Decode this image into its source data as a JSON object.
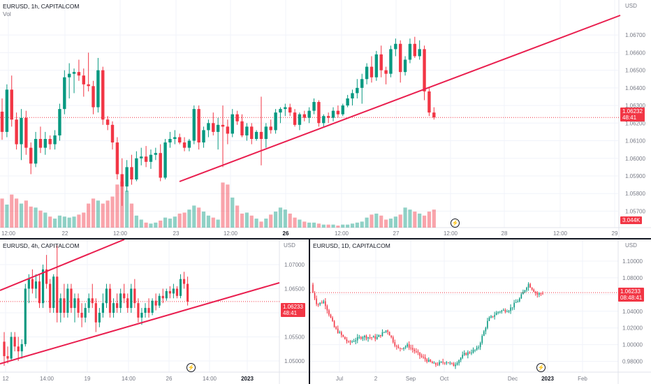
{
  "chart_data": [
    {
      "type": "candlestick",
      "title": "EURUSD, 1h, CAPITALCOM",
      "subtitle": "Vol",
      "currency": "USD",
      "y_ticks": [
        "1.06700",
        "1.06600",
        "1.06500",
        "1.06400",
        "1.06300",
        "1.06200",
        "1.06100",
        "1.06000",
        "1.05900",
        "1.05800",
        "1.05700"
      ],
      "ylim": [
        1.0567,
        1.0688
      ],
      "x_ticks": [
        "12:00",
        "22",
        "12:00",
        "23",
        "12:00",
        "26",
        "12:00",
        "27",
        "12:00",
        "28",
        "12:00",
        "29"
      ],
      "bold_ticks": [
        "26"
      ],
      "last_price": "1.06232",
      "countdown": "48:41",
      "volume_label": "3.044K",
      "candles": [
        [
          1.06265,
          1.0634,
          1.06105,
          1.0615
        ],
        [
          1.0615,
          1.0642,
          1.0612,
          1.0639
        ],
        [
          1.0639,
          1.0647,
          1.0618,
          1.0622
        ],
        [
          1.0622,
          1.0626,
          1.0605,
          1.0608
        ],
        [
          1.0608,
          1.0628,
          1.0599,
          1.0623
        ],
        [
          1.0623,
          1.0627,
          1.0602,
          1.0606
        ],
        [
          1.0606,
          1.0609,
          1.0591,
          1.0597
        ],
        [
          1.0597,
          1.0615,
          1.0595,
          1.0611
        ],
        [
          1.0611,
          1.0618,
          1.0603,
          1.0606
        ],
        [
          1.0606,
          1.0615,
          1.0602,
          1.0611
        ],
        [
          1.0611,
          1.0613,
          1.0605,
          1.0608
        ],
        [
          1.0608,
          1.0616,
          1.0605,
          1.0613
        ],
        [
          1.0613,
          1.0631,
          1.061,
          1.0628
        ],
        [
          1.0628,
          1.065,
          1.0625,
          1.0646
        ],
        [
          1.0646,
          1.0654,
          1.0634,
          1.0648
        ],
        [
          1.0648,
          1.0651,
          1.0637,
          1.0649
        ],
        [
          1.0649,
          1.0656,
          1.0644,
          1.0647
        ],
        [
          1.0647,
          1.0651,
          1.0635,
          1.0642
        ],
        [
          1.0642,
          1.066,
          1.0638,
          1.0641
        ],
        [
          1.0641,
          1.0644,
          1.0625,
          1.0629
        ],
        [
          1.0629,
          1.0657,
          1.0626,
          1.065
        ],
        [
          1.065,
          1.0652,
          1.0619,
          1.0622
        ],
        [
          1.0622,
          1.0624,
          1.0616,
          1.0619
        ],
        [
          1.0619,
          1.0621,
          1.0605,
          1.0609
        ],
        [
          1.0609,
          1.0612,
          1.0588,
          1.0591
        ],
        [
          1.0591,
          1.06,
          1.0573,
          1.0584
        ],
        [
          1.0584,
          1.0599,
          1.0581,
          1.0595
        ],
        [
          1.0595,
          1.0602,
          1.0585,
          1.0588
        ],
        [
          1.0588,
          1.0604,
          1.0587,
          1.06
        ],
        [
          1.06,
          1.0606,
          1.0596,
          1.0601
        ],
        [
          1.0601,
          1.0607,
          1.0595,
          1.0598
        ],
        [
          1.0598,
          1.0605,
          1.0594,
          1.0602
        ],
        [
          1.0602,
          1.0606,
          1.0599,
          1.0603
        ],
        [
          1.0603,
          1.0608,
          1.0587,
          1.0589
        ],
        [
          1.0589,
          1.0611,
          1.0588,
          1.0609
        ],
        [
          1.0609,
          1.0615,
          1.0606,
          1.0611
        ],
        [
          1.0611,
          1.0616,
          1.0608,
          1.0612
        ],
        [
          1.0612,
          1.0614,
          1.0608,
          1.0609
        ],
        [
          1.0609,
          1.0612,
          1.0604,
          1.0606
        ],
        [
          1.0606,
          1.0611,
          1.0604,
          1.061
        ],
        [
          1.061,
          1.063,
          1.0608,
          1.0628
        ],
        [
          1.0628,
          1.063,
          1.0605,
          1.0609
        ],
        [
          1.0609,
          1.0618,
          1.0606,
          1.0616
        ],
        [
          1.0616,
          1.0622,
          1.0612,
          1.062
        ],
        [
          1.062,
          1.0626,
          1.0613,
          1.0615
        ],
        [
          1.0615,
          1.0623,
          1.0605,
          1.0619
        ],
        [
          1.0619,
          1.063,
          1.0595,
          1.0618
        ],
        [
          1.0618,
          1.0622,
          1.0608,
          1.0614
        ],
        [
          1.0614,
          1.0628,
          1.0612,
          1.0625
        ],
        [
          1.0625,
          1.0627,
          1.0619,
          1.0621
        ],
        [
          1.0621,
          1.0625,
          1.0612,
          1.0613
        ],
        [
          1.0613,
          1.062,
          1.061,
          1.0618
        ],
        [
          1.0618,
          1.062,
          1.0608,
          1.0611
        ],
        [
          1.0611,
          1.0616,
          1.061,
          1.0615
        ],
        [
          1.0615,
          1.0635,
          1.0596,
          1.0611
        ],
        [
          1.0611,
          1.062,
          1.0606,
          1.0618
        ],
        [
          1.0618,
          1.0622,
          1.0614,
          1.0616
        ],
        [
          1.0616,
          1.0628,
          1.0614,
          1.0626
        ],
        [
          1.0626,
          1.0629,
          1.062,
          1.0628
        ],
        [
          1.0628,
          1.0631,
          1.0624,
          1.0629
        ],
        [
          1.0629,
          1.0631,
          1.0624,
          1.0626
        ],
        [
          1.0626,
          1.0628,
          1.0618,
          1.0619
        ],
        [
          1.0619,
          1.0626,
          1.0616,
          1.0625
        ],
        [
          1.0625,
          1.0627,
          1.0621,
          1.0623
        ],
        [
          1.0623,
          1.0629,
          1.062,
          1.0627
        ],
        [
          1.0627,
          1.0634,
          1.0625,
          1.0632
        ],
        [
          1.0632,
          1.0633,
          1.0618,
          1.062
        ],
        [
          1.062,
          1.0625,
          1.0618,
          1.0624
        ],
        [
          1.0624,
          1.0626,
          1.062,
          1.0623
        ],
        [
          1.0623,
          1.0629,
          1.0621,
          1.0627
        ],
        [
          1.0627,
          1.063,
          1.0623,
          1.0625
        ],
        [
          1.0625,
          1.0631,
          1.0624,
          1.063
        ],
        [
          1.063,
          1.0636,
          1.0629,
          1.0634
        ],
        [
          1.0634,
          1.0639,
          1.063,
          1.0637
        ],
        [
          1.0637,
          1.0645,
          1.0634,
          1.064
        ],
        [
          1.064,
          1.0648,
          1.0631,
          1.0645
        ],
        [
          1.0645,
          1.0654,
          1.0642,
          1.0652
        ],
        [
          1.0652,
          1.0658,
          1.0643,
          1.0646
        ],
        [
          1.0646,
          1.0661,
          1.0644,
          1.0659
        ],
        [
          1.0659,
          1.0664,
          1.0646,
          1.065
        ],
        [
          1.065,
          1.0652,
          1.0642,
          1.0648
        ],
        [
          1.0648,
          1.0664,
          1.0646,
          1.0662
        ],
        [
          1.0662,
          1.0668,
          1.0658,
          1.0665
        ],
        [
          1.0665,
          1.0667,
          1.0643,
          1.0649
        ],
        [
          1.0649,
          1.0658,
          1.0647,
          1.0656
        ],
        [
          1.0656,
          1.0668,
          1.0654,
          1.0665
        ],
        [
          1.0665,
          1.0669,
          1.0657,
          1.0658
        ],
        [
          1.0658,
          1.0667,
          1.0656,
          1.0662
        ],
        [
          1.0662,
          1.0664,
          1.0633,
          1.0638
        ],
        [
          1.0638,
          1.064,
          1.0624,
          1.0626
        ],
        [
          1.0626,
          1.0629,
          1.0622,
          1.06232
        ]
      ],
      "volume": [
        29,
        23,
        33,
        29,
        24,
        27,
        21,
        20,
        17,
        15,
        11,
        9,
        12,
        11,
        10,
        11,
        13,
        15,
        24,
        29,
        27,
        24,
        27,
        31,
        43,
        46,
        37,
        24,
        12,
        8,
        5,
        4,
        5,
        7,
        10,
        9,
        11,
        14,
        15,
        18,
        22,
        20,
        16,
        12,
        10,
        8,
        45,
        43,
        30,
        22,
        14,
        15,
        12,
        9,
        6,
        9,
        13,
        16,
        20,
        18,
        14,
        10,
        8,
        6,
        5,
        5,
        4,
        3,
        3,
        3,
        2,
        3,
        3,
        4,
        5,
        6,
        10,
        13,
        14,
        12,
        8,
        9,
        11,
        13,
        20,
        18,
        16,
        14,
        12,
        16,
        18
      ],
      "volume_up": [
        false,
        true,
        false,
        false,
        true,
        false,
        false,
        true,
        false,
        true,
        false,
        true,
        true,
        true,
        true,
        true,
        false,
        false,
        false,
        false,
        true,
        false,
        false,
        false,
        false,
        false,
        true,
        false,
        true,
        true,
        false,
        true,
        true,
        false,
        true,
        true,
        true,
        false,
        false,
        true,
        true,
        false,
        true,
        true,
        false,
        true,
        false,
        false,
        true,
        false,
        false,
        true,
        false,
        true,
        false,
        true,
        false,
        true,
        true,
        true,
        false,
        false,
        true,
        false,
        true,
        true,
        false,
        true,
        false,
        true,
        false,
        true,
        true,
        true,
        true,
        true,
        true,
        false,
        true,
        false,
        false,
        true,
        true,
        false,
        true,
        true,
        false,
        true,
        false,
        false,
        false
      ],
      "trendline": [
        [
          1.0588
        ],
        [
          1.0672
        ]
      ]
    },
    {
      "type": "candlestick",
      "title": "EURUSD, 4h, CAPITALCOM",
      "currency": "USD",
      "y_ticks": [
        "1.07000",
        "1.06500",
        "1.06000",
        "1.05500",
        "1.05000"
      ],
      "ylim": [
        1.0487,
        1.0726
      ],
      "x_ticks": [
        "12",
        "14:00",
        "19",
        "14:00",
        "26",
        "14:00",
        "2023"
      ],
      "bold_ticks": [
        "2023"
      ],
      "last_price": "1.06233",
      "countdown": "48:41",
      "candles": [
        [
          1.054,
          1.056,
          1.049,
          1.051
        ],
        [
          1.051,
          1.053,
          1.0495,
          1.0505
        ],
        [
          1.0505,
          1.056,
          1.05,
          1.055
        ],
        [
          1.055,
          1.056,
          1.052,
          1.053
        ],
        [
          1.053,
          1.055,
          1.05,
          1.052
        ],
        [
          1.052,
          1.0545,
          1.0505,
          1.0535
        ],
        [
          1.0535,
          1.066,
          1.053,
          1.065
        ],
        [
          1.065,
          1.068,
          1.062,
          1.067
        ],
        [
          1.067,
          1.069,
          1.064,
          1.065
        ],
        [
          1.065,
          1.068,
          1.063,
          1.0665
        ],
        [
          1.0665,
          1.068,
          1.061,
          1.062
        ],
        [
          1.062,
          1.07,
          1.061,
          1.069
        ],
        [
          1.069,
          1.072,
          1.065,
          1.066
        ],
        [
          1.066,
          1.067,
          1.06,
          1.061
        ],
        [
          1.061,
          1.068,
          1.06,
          1.0675
        ],
        [
          1.0675,
          1.074,
          1.058,
          1.06
        ],
        [
          1.06,
          1.064,
          1.058,
          1.063
        ],
        [
          1.063,
          1.066,
          1.059,
          1.06
        ],
        [
          1.06,
          1.066,
          1.059,
          1.065
        ],
        [
          1.065,
          1.066,
          1.06,
          1.061
        ],
        [
          1.061,
          1.064,
          1.058,
          1.063
        ],
        [
          1.063,
          1.064,
          1.059,
          1.06
        ],
        [
          1.06,
          1.062,
          1.057,
          1.059
        ],
        [
          1.059,
          1.062,
          1.058,
          1.061
        ],
        [
          1.061,
          1.064,
          1.06,
          1.063
        ],
        [
          1.063,
          1.066,
          1.061,
          1.062
        ],
        [
          1.062,
          1.063,
          1.056,
          1.058
        ],
        [
          1.058,
          1.061,
          1.057,
          1.06
        ],
        [
          1.06,
          1.064,
          1.059,
          1.062
        ],
        [
          1.062,
          1.066,
          1.061,
          1.065
        ],
        [
          1.065,
          1.066,
          1.059,
          1.06
        ],
        [
          1.06,
          1.063,
          1.059,
          1.062
        ],
        [
          1.062,
          1.064,
          1.06,
          1.061
        ],
        [
          1.061,
          1.065,
          1.06,
          1.064
        ],
        [
          1.064,
          1.066,
          1.062,
          1.063
        ],
        [
          1.063,
          1.064,
          1.06,
          1.061
        ],
        [
          1.061,
          1.066,
          1.06,
          1.065
        ],
        [
          1.065,
          1.067,
          1.061,
          1.062
        ],
        [
          1.062,
          1.063,
          1.058,
          1.059
        ],
        [
          1.059,
          1.061,
          1.0575,
          1.06
        ],
        [
          1.06,
          1.062,
          1.059,
          1.061
        ],
        [
          1.061,
          1.063,
          1.059,
          1.06
        ],
        [
          1.06,
          1.063,
          1.0595,
          1.0625
        ],
        [
          1.0625,
          1.064,
          1.0605,
          1.0615
        ],
        [
          1.0615,
          1.064,
          1.061,
          1.0635
        ],
        [
          1.0635,
          1.065,
          1.062,
          1.063
        ],
        [
          1.063,
          1.065,
          1.0625,
          1.0645
        ],
        [
          1.0645,
          1.0655,
          1.063,
          1.064
        ],
        [
          1.064,
          1.066,
          1.063,
          1.065
        ],
        [
          1.065,
          1.0655,
          1.063,
          1.0635
        ],
        [
          1.0635,
          1.068,
          1.063,
          1.067
        ],
        [
          1.067,
          1.0685,
          1.065,
          1.066
        ],
        [
          1.066,
          1.0675,
          1.0615,
          1.06233
        ]
      ],
      "trendlines": "two ascending channel lines"
    },
    {
      "type": "candlestick",
      "title": "EURUSD, 1D, CAPITALCOM",
      "currency": "USD",
      "y_ticks": [
        "1.10000",
        "1.08000",
        "1.06000",
        "1.04000",
        "1.02000",
        "1.00000",
        "0.98000"
      ],
      "ylim": [
        0.973,
        1.105
      ],
      "x_ticks": [
        "Jul",
        "Sep",
        "Oct",
        "Dec",
        "2023",
        "Feb"
      ],
      "extra_ticks": [
        "2"
      ],
      "bold_ticks": [
        "2023"
      ],
      "last_price": "1.06233",
      "countdown": "08:48:41"
    }
  ]
}
